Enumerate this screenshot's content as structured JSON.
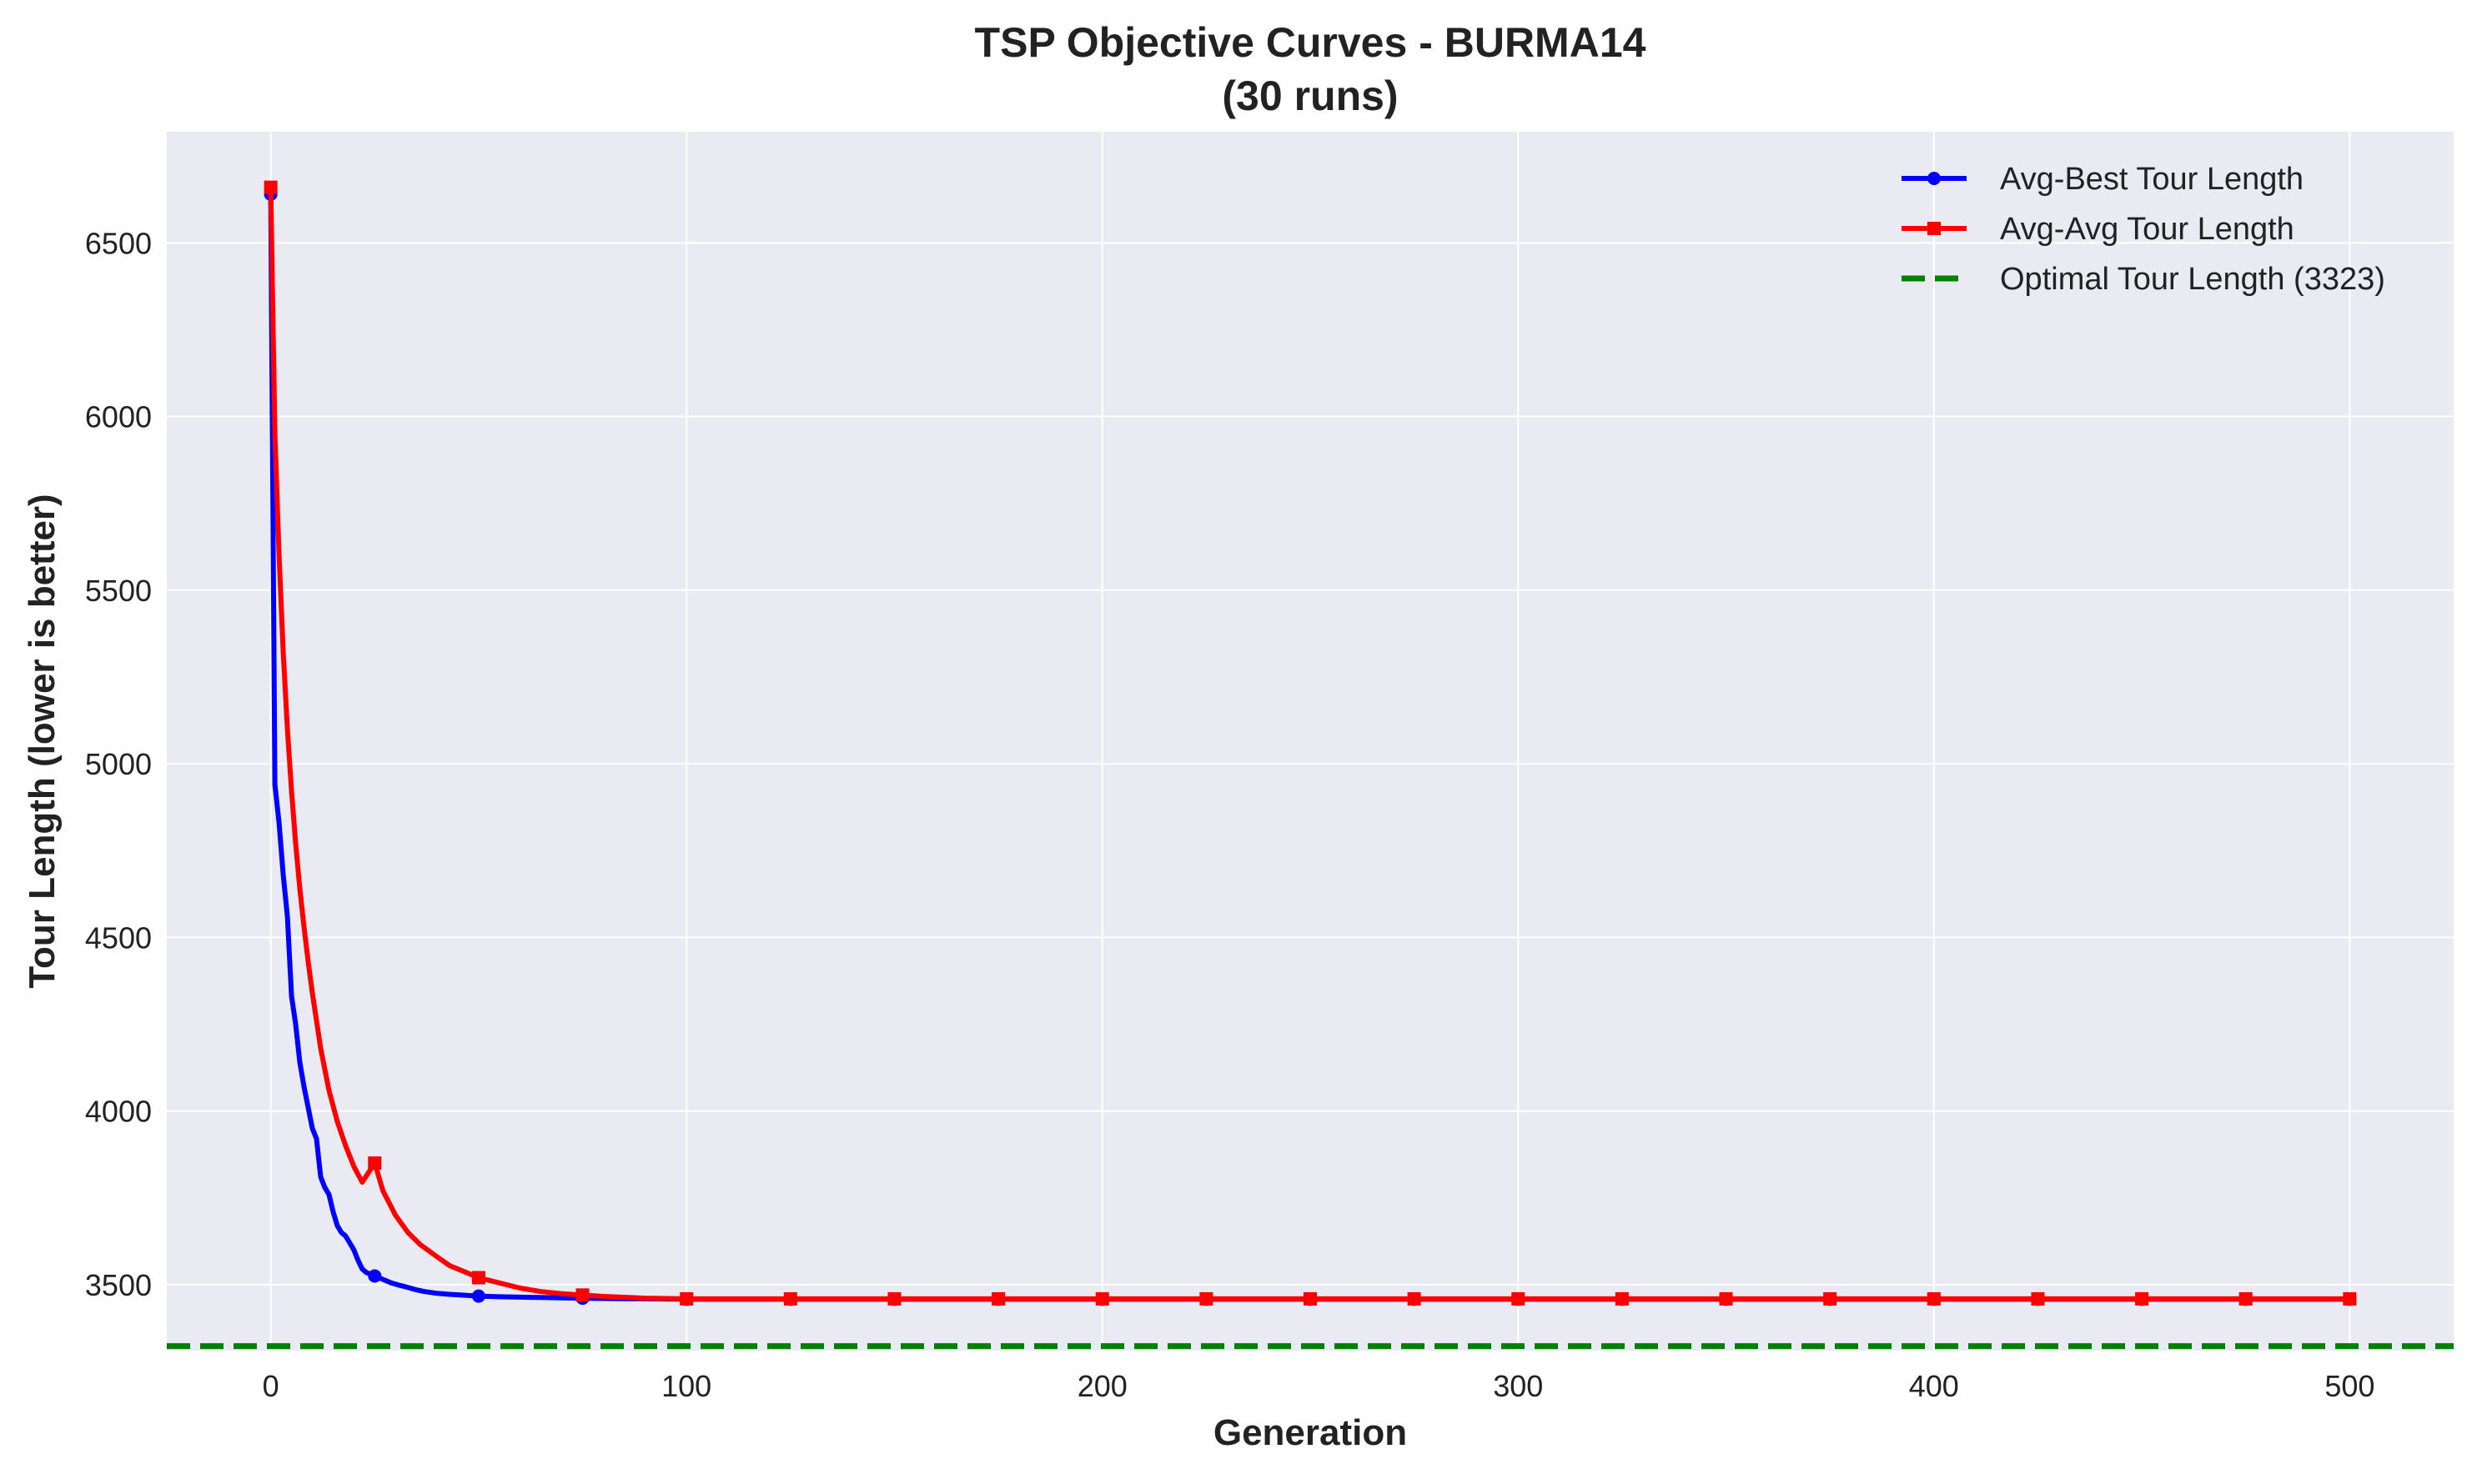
{
  "chart_data": {
    "type": "line",
    "title_line1": "TSP Objective Curves - BURMA14",
    "title_line2": "(30 runs)",
    "xlabel": "Generation",
    "ylabel": "Tour Length (lower is better)",
    "xlim": [
      -25,
      525
    ],
    "ylim": [
      3310,
      6820
    ],
    "xticks": [
      0,
      100,
      200,
      300,
      400,
      500
    ],
    "yticks": [
      3500,
      4000,
      4500,
      5000,
      5500,
      6000,
      6500
    ],
    "grid": true,
    "legend_position": "top-right",
    "series": [
      {
        "name": "Avg-Best Tour Length",
        "color": "#0000ff",
        "marker": "circle",
        "markevery": 25,
        "x": [
          0,
          1,
          2,
          3,
          4,
          5,
          6,
          7,
          8,
          9,
          10,
          11,
          12,
          13,
          14,
          15,
          16,
          17,
          18,
          19,
          20,
          21,
          22,
          23,
          24,
          25,
          27,
          29,
          31,
          33,
          35,
          37,
          40,
          43,
          46,
          50,
          55,
          60,
          65,
          70,
          75,
          80,
          90,
          100,
          125,
          150,
          175,
          200,
          225,
          250,
          275,
          300,
          325,
          350,
          375,
          400,
          425,
          450,
          475,
          500
        ],
        "y": [
          6640,
          4940,
          4830,
          4680,
          4560,
          4330,
          4250,
          4140,
          4070,
          4010,
          3950,
          3920,
          3810,
          3780,
          3760,
          3710,
          3670,
          3650,
          3640,
          3620,
          3600,
          3570,
          3545,
          3535,
          3530,
          3525,
          3515,
          3505,
          3498,
          3492,
          3485,
          3480,
          3475,
          3472,
          3470,
          3467,
          3465,
          3464,
          3463,
          3462,
          3461,
          3460,
          3459,
          3458,
          3458,
          3458,
          3458,
          3458,
          3458,
          3458,
          3458,
          3458,
          3458,
          3458,
          3458,
          3458,
          3458,
          3458,
          3458,
          3458
        ]
      },
      {
        "name": "Avg-Avg Tour Length",
        "color": "#ff0000",
        "marker": "square",
        "markevery": 25,
        "x": [
          0,
          1,
          2,
          3,
          4,
          5,
          6,
          7,
          8,
          9,
          10,
          12,
          14,
          16,
          18,
          20,
          22,
          25,
          27,
          30,
          33,
          36,
          40,
          43,
          46,
          50,
          55,
          60,
          65,
          70,
          75,
          80,
          90,
          100,
          125,
          150,
          175,
          200,
          225,
          250,
          275,
          300,
          325,
          350,
          375,
          400,
          425,
          450,
          475,
          500
        ],
        "y": [
          6660,
          5950,
          5600,
          5320,
          5100,
          4920,
          4770,
          4640,
          4530,
          4430,
          4340,
          4180,
          4060,
          3970,
          3900,
          3840,
          3795,
          3850,
          3770,
          3700,
          3650,
          3615,
          3580,
          3555,
          3540,
          3520,
          3505,
          3490,
          3480,
          3474,
          3470,
          3466,
          3461,
          3459,
          3459,
          3459,
          3459,
          3459,
          3459,
          3459,
          3459,
          3459,
          3459,
          3459,
          3459,
          3459,
          3459,
          3459,
          3459,
          3459
        ]
      },
      {
        "name": "Optimal Tour Length (3323)",
        "color": "#008000",
        "style": "dashed",
        "value": 3323
      }
    ]
  }
}
